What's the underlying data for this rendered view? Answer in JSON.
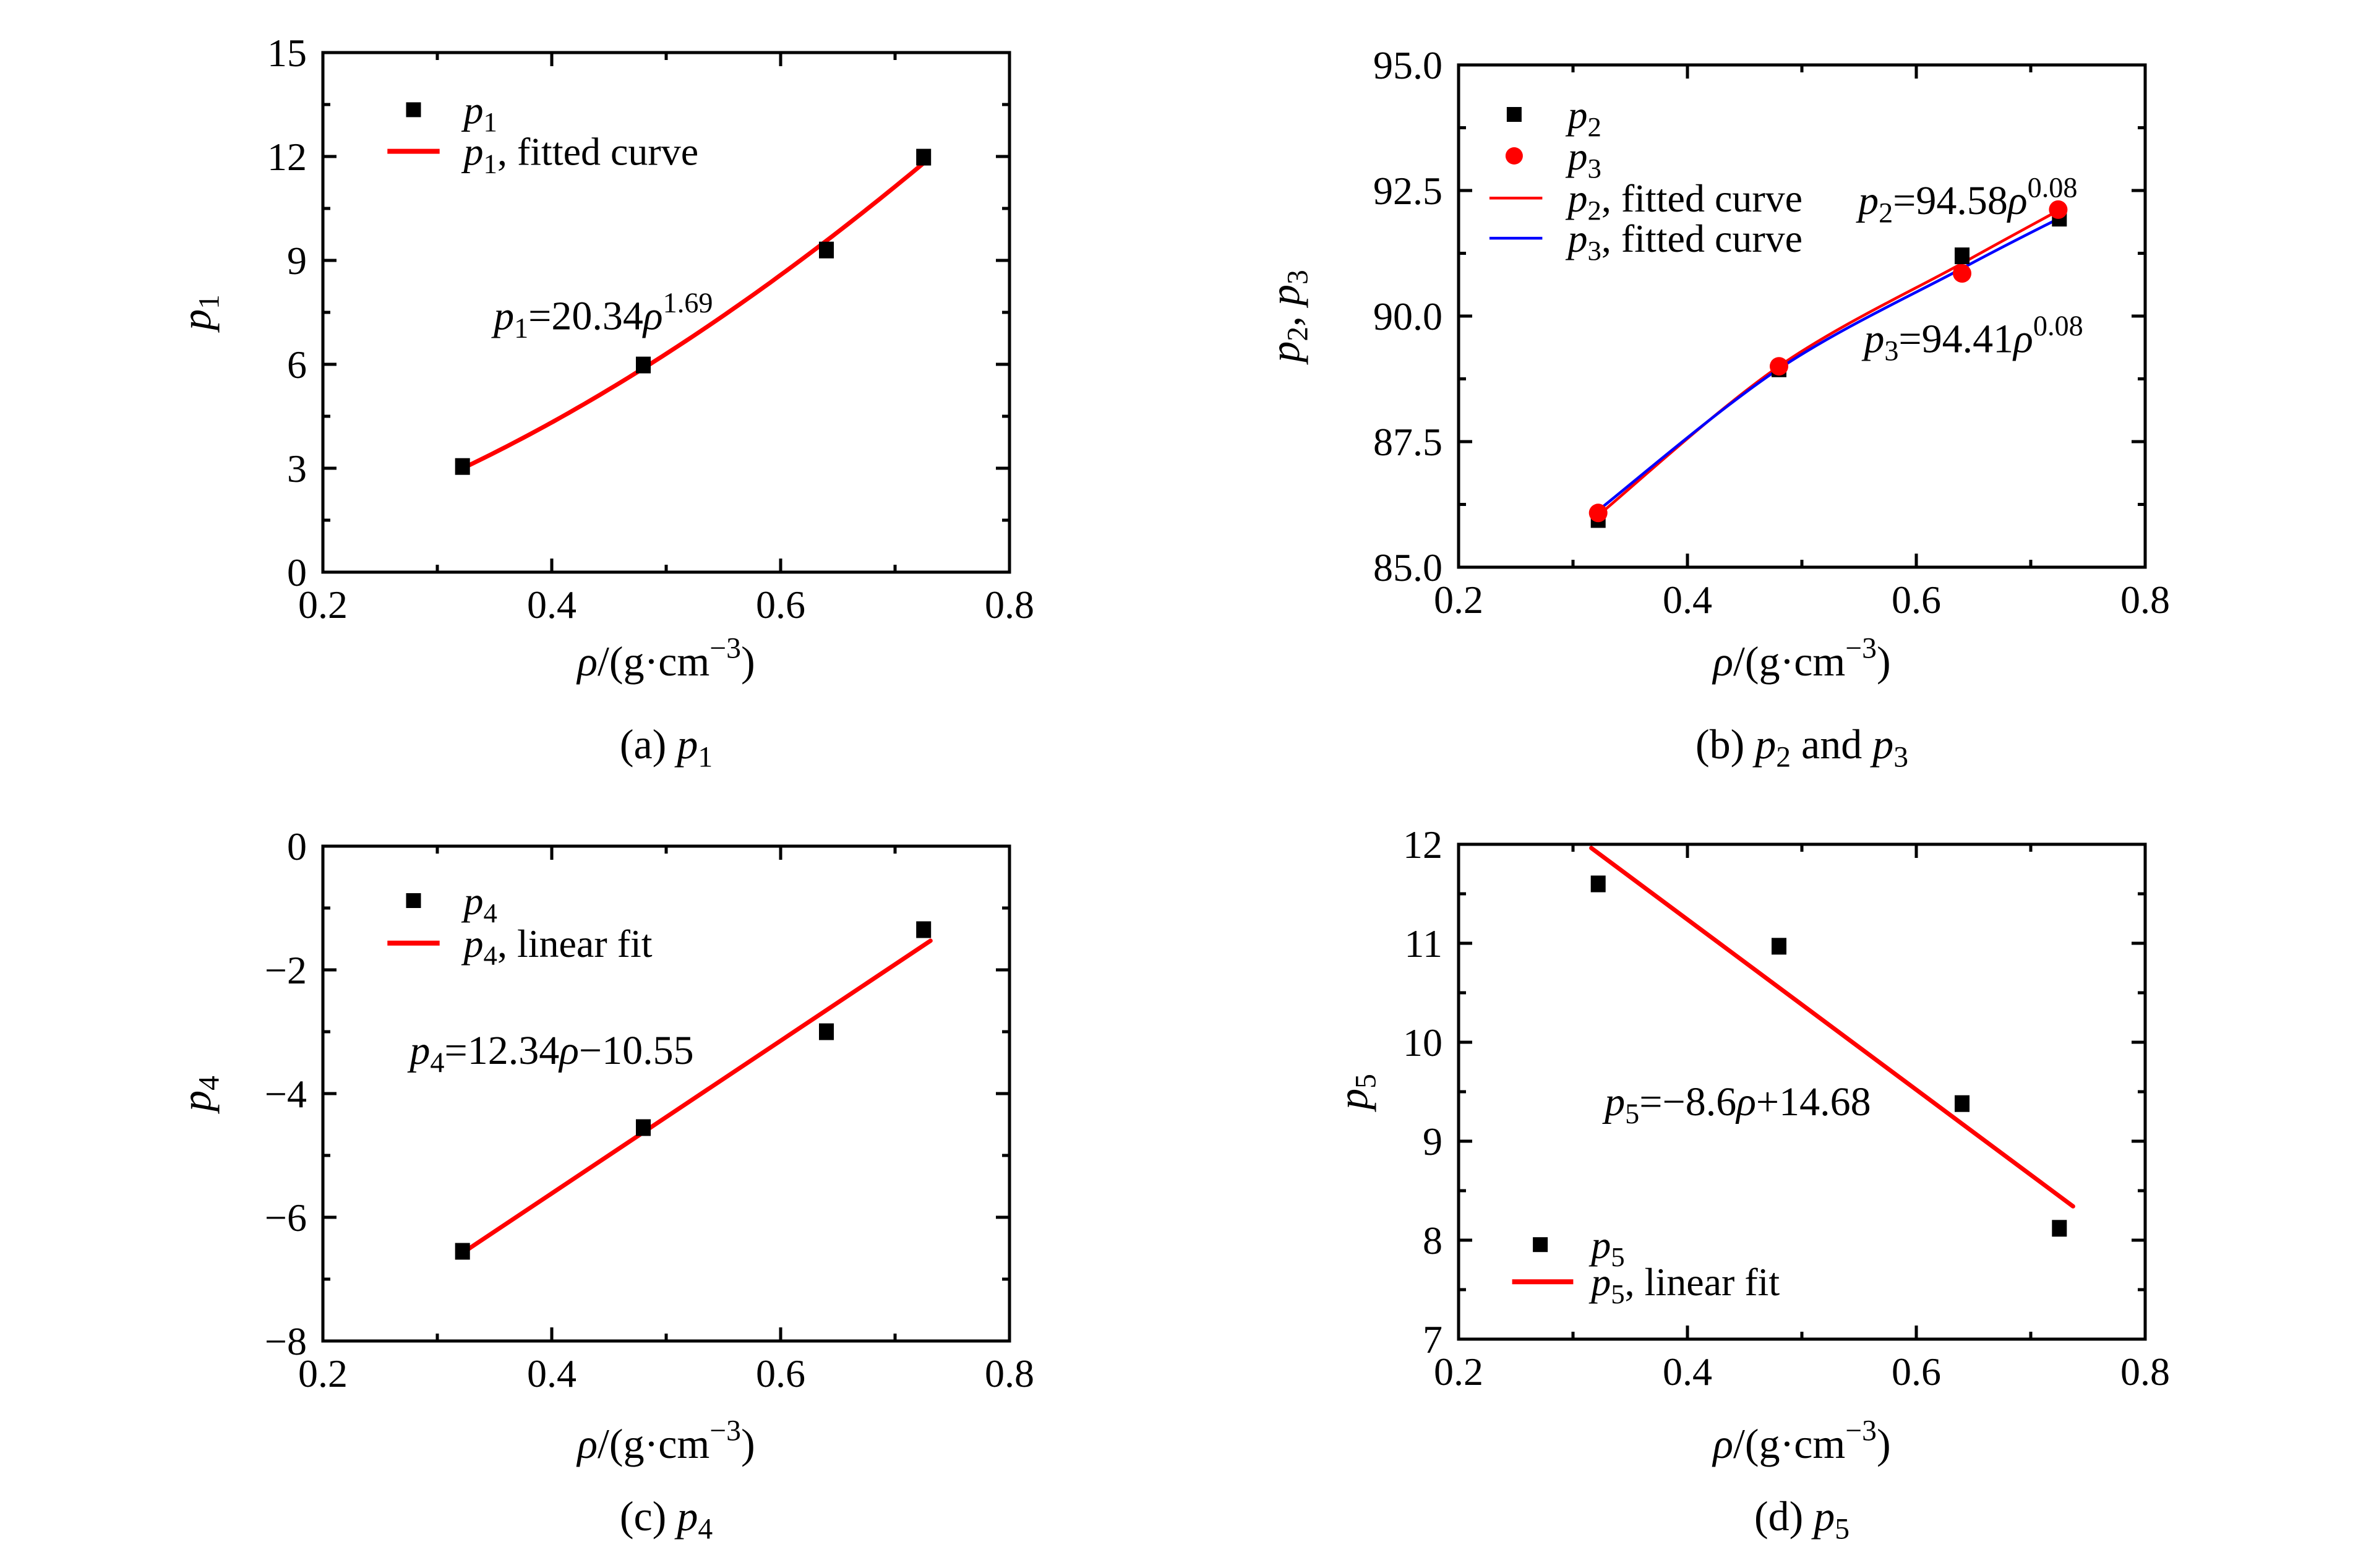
{
  "figure": {
    "background": "#ffffff",
    "colors": {
      "black": "#000000",
      "red": "#ff0000",
      "blue": "#0000ff"
    }
  },
  "chart_data": [
    {
      "id": "a",
      "type": "scatter",
      "caption_segments": [
        {
          "t": "(a) ",
          "k": "n"
        },
        {
          "t": "p",
          "k": "i"
        },
        {
          "t": "1",
          "k": "sub"
        }
      ],
      "xlabel_segments": [
        {
          "t": "ρ",
          "k": "i"
        },
        {
          "t": "/(g·cm",
          "k": "n"
        },
        {
          "t": "−3",
          "k": "sup"
        },
        {
          "t": ")",
          "k": "n"
        }
      ],
      "ylabel_segments": [
        {
          "t": "p",
          "k": "i"
        },
        {
          "t": "1",
          "k": "sub"
        }
      ],
      "xlim": [
        0.2,
        0.8
      ],
      "ylim": [
        0,
        15
      ],
      "x_major_ticks": [
        0.2,
        0.4,
        0.6,
        0.8
      ],
      "x_tick_labels": [
        "0.2",
        "0.4",
        "0.6",
        "0.8"
      ],
      "x_minor_ticks": [
        0.3,
        0.5,
        0.7
      ],
      "y_major_ticks": [
        0,
        3,
        6,
        9,
        12,
        15
      ],
      "y_tick_labels": [
        "0",
        "3",
        "6",
        "9",
        "12",
        "15"
      ],
      "y_minor_ticks": [
        1.5,
        4.5,
        7.5,
        10.5,
        13.5
      ],
      "grid": false,
      "series": [
        {
          "name": "p1",
          "marker": "square",
          "color": "#000000",
          "points": [
            [
              0.322,
              3.05
            ],
            [
              0.48,
              5.98
            ],
            [
              0.64,
              9.3
            ],
            [
              0.725,
              11.98
            ]
          ]
        }
      ],
      "fits": [
        {
          "name": "p1-fitted-curve",
          "kind": "power",
          "a": 20.34,
          "b": 1.69,
          "x_range": [
            0.32,
            0.727
          ],
          "color": "#ff0000",
          "width": 7
        }
      ],
      "annotations": [
        {
          "segments": [
            {
              "t": "p",
              "k": "i"
            },
            {
              "t": "1",
              "k": "sub"
            },
            {
              "t": "=20.34",
              "k": "n"
            },
            {
              "t": "ρ",
              "k": "i"
            },
            {
              "t": "1.69",
              "k": "sup"
            }
          ],
          "x": 0.445,
          "y": 7.4
        }
      ],
      "legend": {
        "position": "upper-left",
        "glyph_x": 0.132,
        "line_span": [
          0.094,
          0.17
        ],
        "text_x": 0.205,
        "rows": [
          0.11,
          0.19
        ],
        "items": [
          {
            "glyph": "square",
            "color": "#000000",
            "label_segments": [
              {
                "t": "p",
                "k": "i"
              },
              {
                "t": "1",
                "k": "sub"
              }
            ]
          },
          {
            "glyph": "line",
            "color": "#ff0000",
            "line_width": 8,
            "label_segments": [
              {
                "t": "p",
                "k": "i"
              },
              {
                "t": "1",
                "k": "sub"
              },
              {
                "t": ", fitted curve",
                "k": "n"
              }
            ]
          }
        ]
      }
    },
    {
      "id": "b",
      "type": "scatter",
      "caption_segments": [
        {
          "t": "(b) ",
          "k": "n"
        },
        {
          "t": "p",
          "k": "i"
        },
        {
          "t": "2",
          "k": "sub"
        },
        {
          "t": " and ",
          "k": "n"
        },
        {
          "t": "p",
          "k": "i"
        },
        {
          "t": "3",
          "k": "sub"
        }
      ],
      "xlabel_segments": [
        {
          "t": "ρ",
          "k": "i"
        },
        {
          "t": "/(g·cm",
          "k": "n"
        },
        {
          "t": "−3",
          "k": "sup"
        },
        {
          "t": ")",
          "k": "n"
        }
      ],
      "ylabel_segments": [
        {
          "t": "p",
          "k": "i"
        },
        {
          "t": "2",
          "k": "sub"
        },
        {
          "t": ", ",
          "k": "n"
        },
        {
          "t": "p",
          "k": "i"
        },
        {
          "t": "3",
          "k": "sub"
        }
      ],
      "xlim": [
        0.2,
        0.8
      ],
      "ylim": [
        85.0,
        95.0
      ],
      "x_major_ticks": [
        0.2,
        0.4,
        0.6,
        0.8
      ],
      "x_tick_labels": [
        "0.2",
        "0.4",
        "0.6",
        "0.8"
      ],
      "x_minor_ticks": [
        0.3,
        0.5,
        0.7
      ],
      "y_major_ticks": [
        85.0,
        87.5,
        90.0,
        92.5,
        95.0
      ],
      "y_tick_labels": [
        "85.0",
        "87.5",
        "90.0",
        "92.5",
        "95.0"
      ],
      "y_minor_ticks": [
        86.25,
        88.75,
        91.25,
        93.75
      ],
      "grid": false,
      "series": [
        {
          "name": "p2",
          "marker": "square",
          "color": "#000000",
          "points": [
            [
              0.322,
              85.95
            ],
            [
              0.48,
              88.95
            ],
            [
              0.64,
              91.2
            ],
            [
              0.725,
              91.95
            ]
          ]
        },
        {
          "name": "p3",
          "marker": "circle",
          "color": "#ff0000",
          "points": [
            [
              0.322,
              86.08
            ],
            [
              0.48,
              89.0
            ],
            [
              0.64,
              90.85
            ],
            [
              0.724,
              92.12
            ]
          ]
        }
      ],
      "fits": [
        {
          "name": "p2-fitted-curve",
          "kind": "spline",
          "equation_a": 94.58,
          "equation_b": 0.08,
          "points": [
            [
              0.322,
              86.03
            ],
            [
              0.48,
              89.0
            ],
            [
              0.64,
              91.05
            ],
            [
              0.724,
              92.1
            ]
          ],
          "color": "#ff0000",
          "width": 4.5
        },
        {
          "name": "p3-fitted-curve",
          "kind": "spline",
          "equation_a": 94.41,
          "equation_b": 0.08,
          "points": [
            [
              0.322,
              86.13
            ],
            [
              0.48,
              88.95
            ],
            [
              0.64,
              90.95
            ],
            [
              0.725,
              91.95
            ]
          ],
          "color": "#0000ff",
          "width": 4.5
        }
      ],
      "annotations": [
        {
          "segments": [
            {
              "t": "p",
              "k": "i"
            },
            {
              "t": "2",
              "k": "sub"
            },
            {
              "t": "=94.58",
              "k": "n"
            },
            {
              "t": "ρ",
              "k": "i"
            },
            {
              "t": "0.08",
              "k": "sup"
            }
          ],
          "x": 0.645,
          "y": 92.3
        },
        {
          "segments": [
            {
              "t": "p",
              "k": "i"
            },
            {
              "t": "3",
              "k": "sub"
            },
            {
              "t": "=94.41",
              "k": "n"
            },
            {
              "t": "ρ",
              "k": "i"
            },
            {
              "t": "0.08",
              "k": "sup"
            }
          ],
          "x": 0.65,
          "y": 89.55
        }
      ],
      "legend": {
        "position": "upper-left",
        "glyph_x": 0.081,
        "line_span": [
          0.045,
          0.122
        ],
        "text_x": 0.159,
        "rows": [
          0.0985,
          0.181,
          0.265,
          0.345
        ],
        "items": [
          {
            "glyph": "square",
            "color": "#000000",
            "label_segments": [
              {
                "t": "p",
                "k": "i"
              },
              {
                "t": "2",
                "k": "sub"
              }
            ]
          },
          {
            "glyph": "circle",
            "color": "#ff0000",
            "label_segments": [
              {
                "t": "p",
                "k": "i"
              },
              {
                "t": "3",
                "k": "sub"
              }
            ]
          },
          {
            "glyph": "line",
            "color": "#ff0000",
            "line_width": 4.5,
            "label_segments": [
              {
                "t": "p",
                "k": "i"
              },
              {
                "t": "2",
                "k": "sub"
              },
              {
                "t": ", fitted curve",
                "k": "n"
              }
            ]
          },
          {
            "glyph": "line",
            "color": "#0000ff",
            "line_width": 4.5,
            "label_segments": [
              {
                "t": "p",
                "k": "i"
              },
              {
                "t": "3",
                "k": "sub"
              },
              {
                "t": ", fitted curve",
                "k": "n"
              }
            ]
          }
        ]
      }
    },
    {
      "id": "c",
      "type": "scatter",
      "caption_segments": [
        {
          "t": "(c) ",
          "k": "n"
        },
        {
          "t": "p",
          "k": "i"
        },
        {
          "t": "4",
          "k": "sub"
        }
      ],
      "xlabel_segments": [
        {
          "t": "ρ",
          "k": "i"
        },
        {
          "t": "/(g·cm",
          "k": "n"
        },
        {
          "t": "−3",
          "k": "sup"
        },
        {
          "t": ")",
          "k": "n"
        }
      ],
      "ylabel_segments": [
        {
          "t": "p",
          "k": "i"
        },
        {
          "t": "4",
          "k": "sub"
        }
      ],
      "xlim": [
        0.2,
        0.8
      ],
      "ylim": [
        -8,
        0
      ],
      "x_major_ticks": [
        0.2,
        0.4,
        0.6,
        0.8
      ],
      "x_tick_labels": [
        "0.2",
        "0.4",
        "0.6",
        "0.8"
      ],
      "x_minor_ticks": [
        0.3,
        0.5,
        0.7
      ],
      "y_major_ticks": [
        -8,
        -6,
        -4,
        -2,
        0
      ],
      "y_tick_labels": [
        "−8",
        "−6",
        "−4",
        "−2",
        "0"
      ],
      "y_minor_ticks": [
        -7,
        -5,
        -3,
        -1
      ],
      "grid": false,
      "series": [
        {
          "name": "p4",
          "marker": "square",
          "color": "#000000",
          "points": [
            [
              0.322,
              -6.55
            ],
            [
              0.48,
              -4.55
            ],
            [
              0.64,
              -3.0
            ],
            [
              0.725,
              -1.35
            ]
          ]
        }
      ],
      "fits": [
        {
          "name": "p4-linear-fit",
          "kind": "linear",
          "slope": 12.34,
          "intercept": -10.55,
          "x_range": [
            0.32,
            0.731
          ],
          "color": "#ff0000",
          "width": 7
        }
      ],
      "annotations": [
        {
          "segments": [
            {
              "t": "p",
              "k": "i"
            },
            {
              "t": "4",
              "k": "sub"
            },
            {
              "t": "=12.34",
              "k": "n"
            },
            {
              "t": "ρ",
              "k": "i"
            },
            {
              "t": "−10.55",
              "k": "n"
            }
          ],
          "x": 0.4,
          "y": -3.3
        }
      ],
      "legend": {
        "position": "upper-left",
        "glyph_x": 0.132,
        "line_span": [
          0.094,
          0.17
        ],
        "text_x": 0.205,
        "rows": [
          0.11,
          0.196
        ],
        "items": [
          {
            "glyph": "square",
            "color": "#000000",
            "label_segments": [
              {
                "t": "p",
                "k": "i"
              },
              {
                "t": "4",
                "k": "sub"
              }
            ]
          },
          {
            "glyph": "line",
            "color": "#ff0000",
            "line_width": 8,
            "label_segments": [
              {
                "t": "p",
                "k": "i"
              },
              {
                "t": "4",
                "k": "sub"
              },
              {
                "t": ", linear fit",
                "k": "n"
              }
            ]
          }
        ]
      }
    },
    {
      "id": "d",
      "type": "scatter",
      "caption_segments": [
        {
          "t": "(d) ",
          "k": "n"
        },
        {
          "t": "p",
          "k": "i"
        },
        {
          "t": "5",
          "k": "sub"
        }
      ],
      "xlabel_segments": [
        {
          "t": "ρ",
          "k": "i"
        },
        {
          "t": "/(g·cm",
          "k": "n"
        },
        {
          "t": "−3",
          "k": "sup"
        },
        {
          "t": ")",
          "k": "n"
        }
      ],
      "ylabel_segments": [
        {
          "t": "p",
          "k": "i"
        },
        {
          "t": "5",
          "k": "sub"
        }
      ],
      "xlim": [
        0.2,
        0.8
      ],
      "ylim": [
        7,
        12
      ],
      "x_major_ticks": [
        0.2,
        0.4,
        0.6,
        0.8
      ],
      "x_tick_labels": [
        "0.2",
        "0.4",
        "0.6",
        "0.8"
      ],
      "x_minor_ticks": [
        0.3,
        0.5,
        0.7
      ],
      "y_major_ticks": [
        7,
        8,
        9,
        10,
        11,
        12
      ],
      "y_tick_labels": [
        "7",
        "8",
        "9",
        "10",
        "11",
        "12"
      ],
      "y_minor_ticks": [
        7.5,
        8.5,
        9.5,
        10.5,
        11.5
      ],
      "grid": false,
      "series": [
        {
          "name": "p5",
          "marker": "square",
          "color": "#000000",
          "points": [
            [
              0.322,
              11.6
            ],
            [
              0.48,
              10.97
            ],
            [
              0.64,
              9.38
            ],
            [
              0.725,
              8.12
            ]
          ]
        }
      ],
      "fits": [
        {
          "name": "p5-linear-fit",
          "kind": "linear",
          "slope": -8.6,
          "intercept": 14.68,
          "x_range": [
            0.316,
            0.737
          ],
          "color": "#ff0000",
          "width": 7
        }
      ],
      "annotations": [
        {
          "segments": [
            {
              "t": "p",
              "k": "i"
            },
            {
              "t": "5",
              "k": "sub"
            },
            {
              "t": "=−8.6",
              "k": "n"
            },
            {
              "t": "ρ",
              "k": "i"
            },
            {
              "t": "+14.68",
              "k": "n"
            }
          ],
          "x": 0.444,
          "y": 9.4
        }
      ],
      "legend": {
        "position": "lower-left",
        "glyph_x": 0.119,
        "line_span": [
          0.078,
          0.167
        ],
        "text_x": 0.193,
        "rows": [
          0.809,
          0.884
        ],
        "items": [
          {
            "glyph": "square",
            "color": "#000000",
            "label_segments": [
              {
                "t": "p",
                "k": "i"
              },
              {
                "t": "5",
                "k": "sub"
              }
            ]
          },
          {
            "glyph": "line",
            "color": "#ff0000",
            "line_width": 8,
            "label_segments": [
              {
                "t": "p",
                "k": "i"
              },
              {
                "t": "5",
                "k": "sub"
              },
              {
                "t": ", linear fit",
                "k": "n"
              }
            ]
          }
        ]
      }
    }
  ]
}
